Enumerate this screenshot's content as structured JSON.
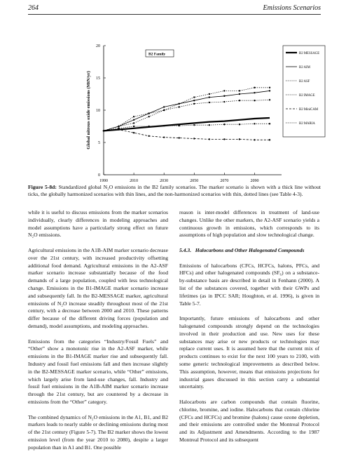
{
  "header": {
    "page": "264",
    "running_title": "Emissions Scenarios"
  },
  "chart_data": {
    "type": "line",
    "ylabel": "Global nitrous oxide emissions (MtN/yr)",
    "annotation": "B2 Family",
    "x": [
      1990,
      2000,
      2010,
      2020,
      2030,
      2040,
      2050,
      2060,
      2070,
      2080,
      2090,
      2100
    ],
    "xlim": [
      1990,
      2100
    ],
    "xticks": [
      1990,
      2010,
      2030,
      2050,
      2070,
      2090
    ],
    "ylim": [
      0,
      20
    ],
    "yticks": [
      0,
      5,
      10,
      15,
      20
    ],
    "series": [
      {
        "name": "B2 MESSAGE",
        "color": "#000000",
        "style": "solid-thick",
        "values": [
          6.8,
          7.0,
          7.2,
          7.4,
          7.6,
          7.8,
          8.0,
          8.2,
          8.3,
          8.5,
          8.7,
          8.8
        ]
      },
      {
        "name": "B2 AIM",
        "color": "#000000",
        "style": "solid",
        "values": [
          6.8,
          7.5,
          8.5,
          9.5,
          10.5,
          11,
          11.5,
          12,
          12.2,
          12.5,
          12.7,
          13
        ]
      },
      {
        "name": "B2 ASF",
        "color": "#000000",
        "style": "dotted",
        "values": [
          6.8,
          7.5,
          8,
          9,
          10,
          11,
          12,
          12.5,
          13,
          13,
          13.5,
          13.5
        ]
      },
      {
        "name": "B2 IMAGE",
        "color": "#000000",
        "style": "dotted",
        "values": [
          6.8,
          7.5,
          9,
          9.5,
          10,
          10.5,
          11,
          11.2,
          11.3,
          11.5,
          11.5,
          11.6
        ]
      },
      {
        "name": "B2 MiniCAM",
        "color": "#000000",
        "style": "dashed",
        "values": [
          6.8,
          7,
          6.5,
          6,
          5.8,
          5.7,
          5.6,
          5.5,
          5.5,
          5.5,
          5.4,
          5.4
        ]
      },
      {
        "name": "B2 MARIA",
        "color": "#000000",
        "style": "dotted",
        "values": [
          6.8,
          7.2,
          7.5,
          7.5,
          7.6,
          7.6,
          7.7,
          7.7,
          7.8,
          7.8,
          7.9,
          7.9
        ]
      }
    ]
  },
  "caption": {
    "label": "Figure 5-8d:",
    "text": "Standardized global N₂O emissions in the B2 family scenarios. The marker scenario is shown with a thick line without ticks, the globally harmonized scenarios with thin lines, and the non-harmonized scenarios with thin, dotted lines (see Table 4-3)."
  },
  "left_column": [
    "while it is useful to discuss emissions from the marker scenarios individually, clearly differences in modeling approaches and model assumptions have a particularly strong effect on future N₂O emissions.",
    "Agricultural emissions in the A1B-AIM marker scenario decrease over the 21st century, with increased productivity offsetting additional food demand. Agricultural emissions in the A2-ASF marker scenario increase substantially because of the food demands of a large population, coupled with less technological change. Emissions in the B1-IMAGE marker scenario increase and subsequently fall. In the B2-MESSAGE marker, agricultural emissions of N₂O increase steadily throughout most of the 21st century, with a decrease between 2000 and 2010. These patterns differ because of the different driving forces (population and demand), model assumptions, and modeling approaches.",
    "Emissions from the categories “Industry/Fossil Fuels” and “Other” show a monotonic rise in the A2-ASF marker, while emissions in the B1-IMAGE marker rise and subsequently fall. Industry and fossil fuel emissions fall and then increase slightly in the B2-MESSAGE marker scenario, while “Other” emissions, which largely arise from land-use changes, fall. Industry and fossil fuel emissions in the A1B-AIM marker scenario increase through the 21st century, but are countered by a decrease in emissions from the “Other” category.",
    "The combined dynamics of N₂O emissions in the A1, B1, and B2 markers leads to nearly stable or declining emissions during most of the 21st century (Figure 5-7). The B2 marker shows the lowest emission level (from the year 2010 to 2080), despite a larger population than in A1 and B1. One possible"
  ],
  "right_column": {
    "intro": "reason is inter-model differences in treatment of land-use changes. Unlike the other markers, the A2-ASF scenario yields a continuous growth in emissions, which corresponds to its assumptions of high population and slow technological change.",
    "heading_number": "5.4.3.",
    "heading": "Halocarbons and Other Halogenated Compounds",
    "paragraphs": [
      "Emissions of halocarbons (CFCs, HCFCs, halons, PFCs, and HFCs) and other halogenated compounds (SF₆) on a substance-by-substance basis are described in detail in Fenhann (2000). A list of the substances covered, together with their GWPs and lifetimes (as in IPCC SAR; Houghton, et al. 1996), is given in Table 5-7.",
      "Importantly, future emissions of halocarbons and other halogenated compounds strongly depend on the technologies involved in their production and use. New uses for these substances may arise or new products or technologies may replace current uses. It is assumed here that the current mix of products continues to exist for the next 100 years to 2100, with some generic technological improvements as described below. This assumption, however, means that emissions projections for industrial gases discussed in this section carry a substantial uncertainty.",
      "Halocarbons are carbon compounds that contain fluorine, chlorine, bromine, and iodine. Halocarbons that contain chlorine (CFCs and HCFCs) and bromine (halons) cause ozone depletion, and their emissions are controlled under the Montreal Protocol and its Adjustment and Amendments. According to the 1987 Montreal Protocol and its subsequent"
    ]
  }
}
